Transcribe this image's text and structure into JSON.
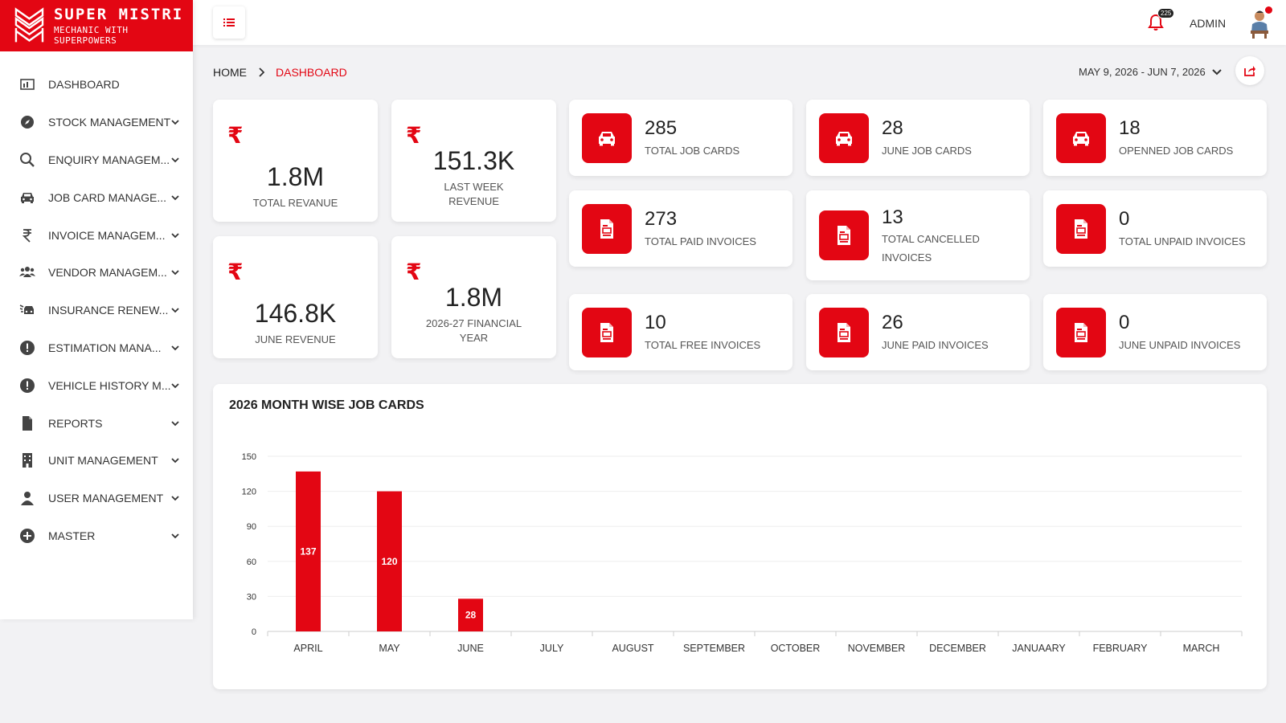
{
  "brand": {
    "title": "SUPER MISTRI",
    "tagline": "MECHANIC WITH SUPERPOWERS"
  },
  "sidebar": {
    "items": [
      {
        "label": "DASHBOARD",
        "icon": "dashboard-icon"
      },
      {
        "label": "STOCK MANAGEMENT",
        "icon": "compass-icon"
      },
      {
        "label": "ENQUIRY MANAGEM...",
        "icon": "search-icon"
      },
      {
        "label": "JOB CARD MANAGE...",
        "icon": "car-icon"
      },
      {
        "label": "INVOICE MANAGEM...",
        "icon": "rupee-icon"
      },
      {
        "label": "VENDOR MANAGEM...",
        "icon": "users-icon"
      },
      {
        "label": "INSURANCE RENEW...",
        "icon": "car-crash-icon"
      },
      {
        "label": "ESTIMATION MANA...",
        "icon": "alert-circle-icon"
      },
      {
        "label": "VEHICLE HISTORY M...",
        "icon": "alert-circle-icon"
      },
      {
        "label": "REPORTS",
        "icon": "file-icon"
      },
      {
        "label": "UNIT MANAGEMENT",
        "icon": "building-icon"
      },
      {
        "label": "USER MANAGEMENT",
        "icon": "user-icon"
      },
      {
        "label": "MASTER",
        "icon": "plus-circle-icon"
      }
    ]
  },
  "topbar": {
    "notification_count": "225",
    "user_label": "ADMIN"
  },
  "breadcrumb": {
    "home": "HOME",
    "current": "DASHBOARD"
  },
  "date_range": "MAY 9, 2026 - JUN 7, 2026",
  "revenue_cards": [
    {
      "value": "1.8M",
      "label": "TOTAL REVANUE"
    },
    {
      "value": "151.3K",
      "label": "LAST WEEK REVENUE"
    },
    {
      "value": "146.8K",
      "label": "JUNE REVENUE"
    },
    {
      "value": "1.8M",
      "label": "2026-27 FINANCIAL YEAR"
    }
  ],
  "stat_cards": [
    {
      "value": "285",
      "label": "TOTAL JOB CARDS",
      "icon": "car-icon"
    },
    {
      "value": "28",
      "label": "JUNE JOB CARDS",
      "icon": "car-icon"
    },
    {
      "value": "18",
      "label": "OPENNED JOB CARDS",
      "icon": "car-icon"
    },
    {
      "value": "273",
      "label": "TOTAL PAID INVOICES",
      "icon": "invoice-icon"
    },
    {
      "value": "13",
      "label": "TOTAL CANCELLED INVOICES",
      "icon": "invoice-icon"
    },
    {
      "value": "0",
      "label": "TOTAL UNPAID INVOICES",
      "icon": "invoice-icon"
    },
    {
      "value": "10",
      "label": "TOTAL FREE INVOICES",
      "icon": "invoice-icon"
    },
    {
      "value": "26",
      "label": "JUNE PAID INVOICES",
      "icon": "invoice-icon"
    },
    {
      "value": "0",
      "label": "JUNE UNPAID INVOICES",
      "icon": "invoice-icon"
    }
  ],
  "colors": {
    "accent": "#e30613",
    "background": "#f2f2f4"
  },
  "chart_data": {
    "type": "bar",
    "title": "2026 MONTH WISE JOB CARDS",
    "categories": [
      "APRIL",
      "MAY",
      "JUNE",
      "JULY",
      "AUGUST",
      "SEPTEMBER",
      "OCTOBER",
      "NOVEMBER",
      "DECEMBER",
      "JANUAARY",
      "FEBRUARY",
      "MARCH"
    ],
    "values": [
      137,
      120,
      28,
      0,
      0,
      0,
      0,
      0,
      0,
      0,
      0,
      0
    ],
    "yticks": [
      0,
      30,
      60,
      90,
      120,
      150
    ],
    "ylim": [
      0,
      150
    ],
    "grid": true,
    "color": "#e30613",
    "data_labels": true
  }
}
